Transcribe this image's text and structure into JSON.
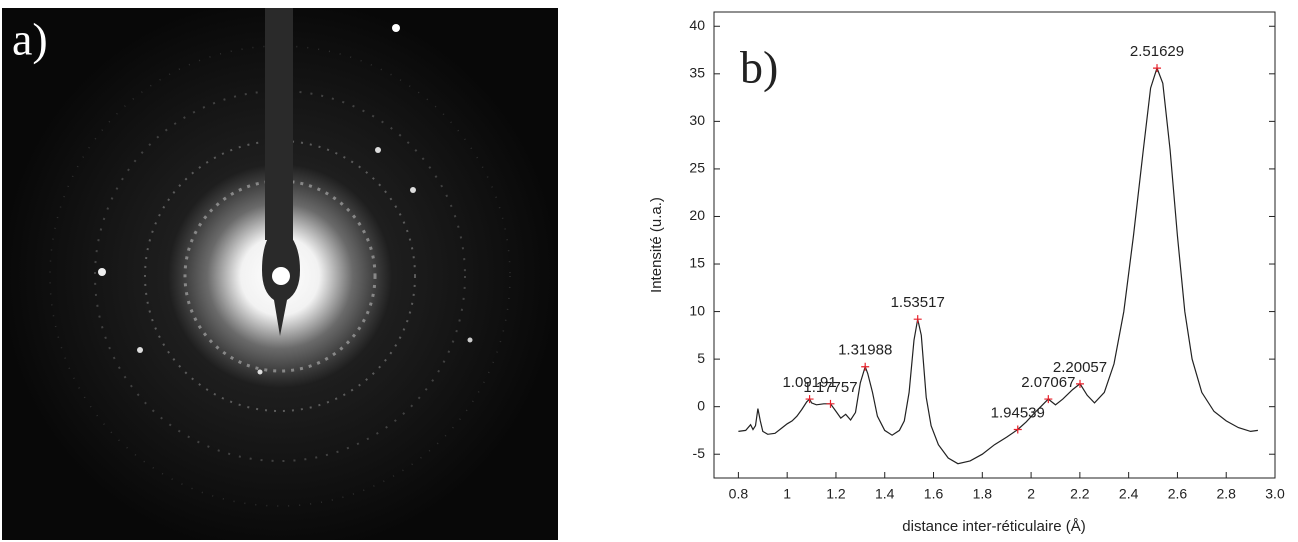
{
  "panel_a": {
    "label": "a)"
  },
  "chart_data": {
    "type": "line",
    "panel_label": "b)",
    "xlabel": "distance inter-réticulaire (Å)",
    "ylabel": "Intensité (u.a.)",
    "xlim": [
      0.7,
      3.0
    ],
    "ylim": [
      -7.5,
      41.5
    ],
    "xticks": [
      0.8,
      1.0,
      1.2,
      1.4,
      1.6,
      1.8,
      2.0,
      2.2,
      2.4,
      2.6,
      2.8,
      {
        "value": 3.0,
        "label": "3.0"
      }
    ],
    "yticks": [
      -5,
      0,
      5,
      10,
      15,
      20,
      25,
      30,
      35,
      40
    ],
    "color": "#222222",
    "x": [
      0.8,
      0.83,
      0.85,
      0.86,
      0.87,
      0.88,
      0.89,
      0.9,
      0.92,
      0.95,
      0.98,
      1.0,
      1.02,
      1.04,
      1.06,
      1.08,
      1.09191,
      1.1,
      1.12,
      1.15,
      1.17757,
      1.2,
      1.22,
      1.24,
      1.26,
      1.28,
      1.3,
      1.31988,
      1.33,
      1.35,
      1.37,
      1.4,
      1.43,
      1.46,
      1.48,
      1.5,
      1.52,
      1.53517,
      1.55,
      1.57,
      1.59,
      1.62,
      1.66,
      1.7,
      1.75,
      1.8,
      1.85,
      1.9,
      1.94539,
      1.98,
      2.02,
      2.07067,
      2.1,
      2.13,
      2.17,
      2.20057,
      2.23,
      2.26,
      2.3,
      2.34,
      2.38,
      2.42,
      2.46,
      2.49,
      2.51629,
      2.54,
      2.57,
      2.6,
      2.63,
      2.66,
      2.7,
      2.75,
      2.8,
      2.85,
      2.9,
      2.93
    ],
    "values": [
      -2.6,
      -2.5,
      -1.9,
      -2.4,
      -2.0,
      -0.2,
      -1.5,
      -2.6,
      -2.9,
      -2.8,
      -2.2,
      -1.8,
      -1.5,
      -1.0,
      -0.3,
      0.5,
      0.8,
      0.4,
      0.2,
      0.3,
      0.3,
      -0.5,
      -1.2,
      -0.8,
      -1.4,
      -0.6,
      2.5,
      4.2,
      3.5,
      1.5,
      -1.0,
      -2.5,
      -3.0,
      -2.5,
      -1.5,
      1.5,
      7.0,
      9.2,
      7.5,
      1.0,
      -2.0,
      -4.0,
      -5.4,
      -6.0,
      -5.7,
      -5.0,
      -4.0,
      -3.2,
      -2.4,
      -1.6,
      -0.5,
      0.8,
      0.2,
      0.8,
      1.8,
      2.4,
      1.2,
      0.4,
      1.5,
      4.5,
      10.0,
      18.0,
      27.0,
      33.5,
      35.6,
      34.0,
      27.0,
      18.0,
      10.0,
      5.0,
      1.5,
      -0.5,
      -1.5,
      -2.2,
      -2.6,
      -2.5
    ],
    "peaks": {
      "color": "#e8202a",
      "x": [
        1.09191,
        1.17757,
        1.31988,
        1.53517,
        1.94539,
        2.07067,
        2.20057,
        2.51629
      ],
      "values": [
        0.8,
        0.3,
        4.2,
        9.2,
        -2.4,
        0.8,
        2.4,
        35.6
      ]
    }
  }
}
